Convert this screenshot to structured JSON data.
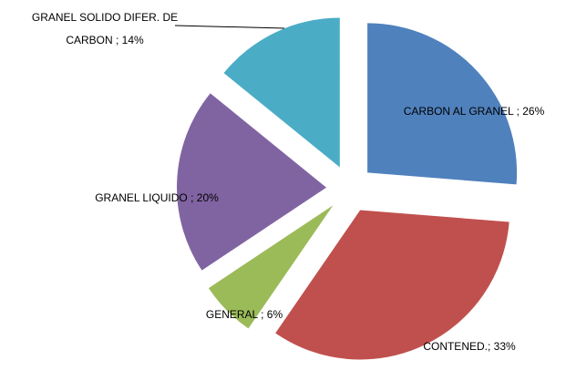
{
  "chart_data": {
    "type": "pie",
    "values": [
      26,
      33,
      6,
      20,
      14
    ],
    "value_labels": [
      "CARBON AL GRANEL ; 26%",
      "CONTENED.; 33%",
      "GENERAL ; 6%",
      "GRANEL LIQUIDO ; 20%",
      "GRANEL SOLIDO DIFER. DE CARBON ; 14%"
    ],
    "colors": [
      "#4f81bd",
      "#c0504d",
      "#9bbb59",
      "#8064a2",
      "#4bacc6"
    ],
    "exploded": true
  }
}
